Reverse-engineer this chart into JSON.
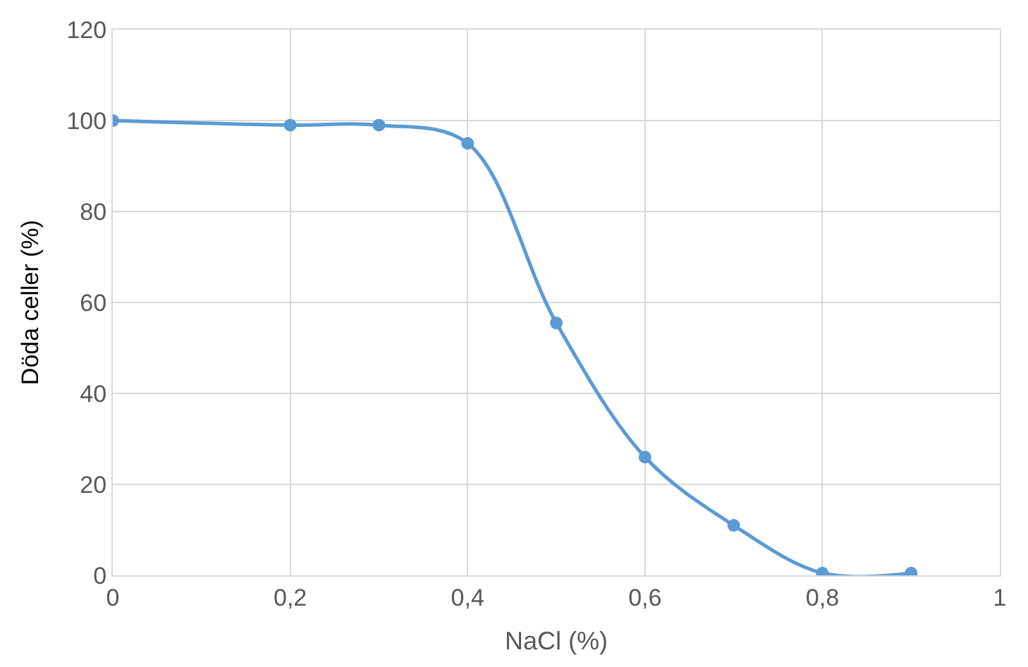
{
  "chart_data": {
    "type": "line",
    "xlabel": "NaCl (%)",
    "ylabel": "Döda celler (%)",
    "x": [
      0,
      0.2,
      0.3,
      0.4,
      0.5,
      0.6,
      0.7,
      0.8,
      0.9
    ],
    "series": [
      {
        "color": "#5b9bd5",
        "values": [
          100,
          99,
          99,
          95,
          55.5,
          26,
          11,
          0.5,
          0.5
        ]
      }
    ],
    "xlim": [
      0,
      1
    ],
    "xticks": [
      0,
      {
        "value": 0.2,
        "label": "0,2"
      },
      {
        "value": 0.4,
        "label": "0,4"
      },
      {
        "value": 0.6,
        "label": "0,6"
      },
      {
        "value": 0.8,
        "label": "0,8"
      },
      1
    ],
    "ylim": [
      0,
      120
    ],
    "yticks": [
      0,
      20,
      40,
      60,
      80,
      100,
      120
    ],
    "grid": true,
    "marker": "circle",
    "line_style": "solid"
  }
}
